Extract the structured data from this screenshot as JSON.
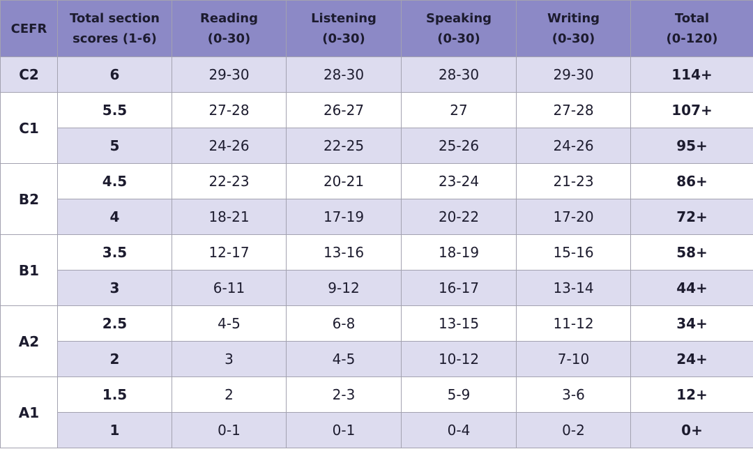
{
  "table": {
    "header": [
      [
        "CEFR"
      ],
      [
        "Total section",
        "scores (1-6)"
      ],
      [
        "Reading",
        "(0-30)"
      ],
      [
        "Listening",
        "(0-30)"
      ],
      [
        "Speaking",
        "(0-30)"
      ],
      [
        "Writing",
        "(0-30)"
      ],
      [
        "Total",
        "(0-120)"
      ]
    ],
    "groups": [
      {
        "cefr": "C2",
        "rows": [
          [
            "6",
            "29-30",
            "28-30",
            "28-30",
            "29-30",
            "114+"
          ]
        ]
      },
      {
        "cefr": "C1",
        "rows": [
          [
            "5.5",
            "27-28",
            "26-27",
            "27",
            "27-28",
            "107+"
          ],
          [
            "5",
            "24-26",
            "22-25",
            "25-26",
            "24-26",
            "95+"
          ]
        ]
      },
      {
        "cefr": "B2",
        "rows": [
          [
            "4.5",
            "22-23",
            "20-21",
            "23-24",
            "21-23",
            "86+"
          ],
          [
            "4",
            "18-21",
            "17-19",
            "20-22",
            "17-20",
            "72+"
          ]
        ]
      },
      {
        "cefr": "B1",
        "rows": [
          [
            "3.5",
            "12-17",
            "13-16",
            "18-19",
            "15-16",
            "58+"
          ],
          [
            "3",
            "6-11",
            "9-12",
            "16-17",
            "13-14",
            "44+"
          ]
        ]
      },
      {
        "cefr": "A2",
        "rows": [
          [
            "2.5",
            "4-5",
            "6-8",
            "13-15",
            "11-12",
            "34+"
          ],
          [
            "2",
            "3",
            "4-5",
            "10-12",
            "7-10",
            "24+"
          ]
        ]
      },
      {
        "cefr": "A1",
        "rows": [
          [
            "1.5",
            "2",
            "2-3",
            "5-9",
            "3-6",
            "12+"
          ],
          [
            "1",
            "0-1",
            "0-1",
            "0-4",
            "0-2",
            "0+"
          ]
        ]
      }
    ]
  }
}
